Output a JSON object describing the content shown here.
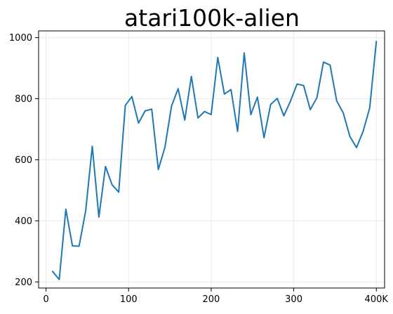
{
  "chart_data": {
    "type": "line",
    "title": "atari100k-alien",
    "xlabel": "",
    "ylabel": "",
    "xlim": [
      -9,
      410
    ],
    "ylim": [
      180,
      1022
    ],
    "grid": true,
    "x_ticks": [
      0,
      100,
      200,
      300,
      400
    ],
    "x_tick_labels": [
      "0",
      "100",
      "200",
      "300",
      "400K"
    ],
    "y_ticks": [
      200,
      400,
      600,
      800,
      1000
    ],
    "y_tick_labels": [
      "200",
      "400",
      "600",
      "800",
      "1000"
    ],
    "colors": {
      "line": "#1f77b4",
      "grid": "#ebebeb",
      "axis": "#000000"
    },
    "series": [
      {
        "x": [
          8,
          16,
          24,
          32,
          40,
          48,
          56,
          64,
          72,
          80,
          88,
          96,
          104,
          112,
          120,
          128,
          136,
          144,
          152,
          160,
          168,
          176,
          184,
          192,
          200,
          208,
          216,
          224,
          232,
          240,
          248,
          256,
          264,
          272,
          280,
          288,
          296,
          304,
          312,
          320,
          328,
          336,
          344,
          352,
          360,
          368,
          376,
          384,
          392,
          400
        ],
        "values": [
          234,
          208,
          438,
          318,
          317,
          432,
          644,
          412,
          578,
          518,
          494,
          778,
          807,
          720,
          760,
          766,
          568,
          641,
          776,
          833,
          730,
          873,
          737,
          758,
          748,
          935,
          815,
          830,
          693,
          950,
          748,
          805,
          672,
          781,
          801,
          744,
          792,
          848,
          843,
          764,
          803,
          920,
          910,
          793,
          753,
          676,
          640,
          693,
          770,
          987
        ]
      }
    ]
  }
}
